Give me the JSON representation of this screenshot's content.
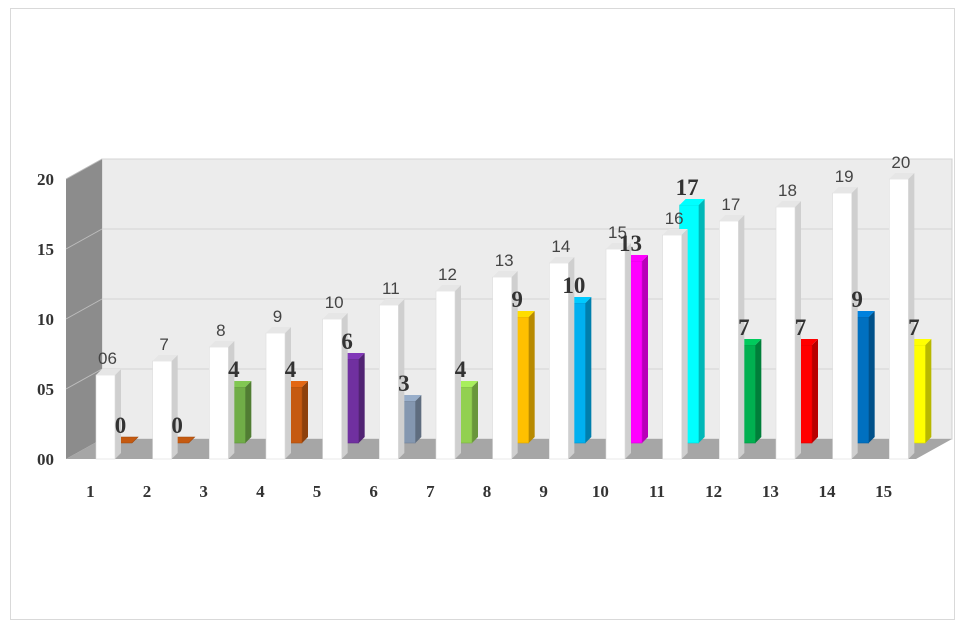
{
  "chart_data": {
    "type": "bar",
    "style": "3d-clustered-column",
    "categories": [
      "1",
      "2",
      "3",
      "4",
      "5",
      "6",
      "7",
      "8",
      "9",
      "10",
      "11",
      "12",
      "13",
      "14",
      "15"
    ],
    "series": [
      {
        "values": [
          6,
          7,
          8,
          9,
          10,
          11,
          12,
          13,
          14,
          15,
          16,
          17,
          18,
          19,
          20
        ],
        "data_labels": [
          "06",
          "7",
          "8",
          "9",
          "10",
          "11",
          "12",
          "13",
          "14",
          "15",
          "16",
          "17",
          "18",
          "19",
          "20"
        ],
        "color": "#ffffff"
      },
      {
        "values": [
          0,
          0,
          4,
          4,
          6,
          3,
          4,
          9,
          10,
          13,
          17,
          7,
          7,
          9,
          7
        ],
        "data_labels": [
          "0",
          "0",
          "4",
          "4",
          "6",
          "3",
          "4",
          "9",
          "10",
          "13",
          "17",
          "7",
          "7",
          "9",
          "7"
        ],
        "point_colors": [
          "#c55a11",
          "#c55a11",
          "#70ad47",
          "#c55a11",
          "#7030a0",
          "#8497b0",
          "#92d050",
          "#ffc000",
          "#00b0f0",
          "#ff00ff",
          "#00ffff",
          "#00b050",
          "#ff0000",
          "#0070c0",
          "#ffff00"
        ]
      }
    ],
    "y_tick_labels": [
      "00",
      "05",
      "10",
      "15",
      "20"
    ],
    "ylim": [
      0,
      20
    ],
    "grid": true,
    "legend": "none",
    "title": "",
    "xlabel": "",
    "ylabel": ""
  }
}
